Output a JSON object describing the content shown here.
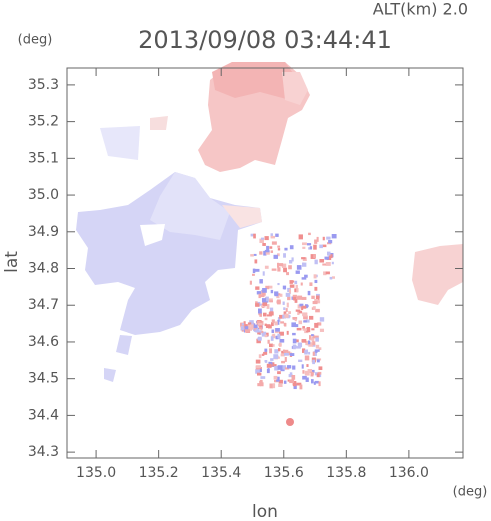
{
  "chart_data": {
    "type": "map",
    "title": "2013/09/08 03:44:41",
    "altitude_label": "ALT(km) 2.0",
    "x_label": "lon",
    "x_unit": "(deg)",
    "y_label": "lat",
    "y_unit": "(deg)",
    "xlim": [
      134.907,
      136.173
    ],
    "ylim": [
      34.284,
      35.346
    ],
    "xticks": [
      {
        "value": 135,
        "label": "135.0"
      },
      135.2,
      135.4,
      135.6,
      135.8,
      {
        "value": 136,
        "label": "136.0"
      }
    ],
    "yticks": [
      34.3,
      34.4,
      34.5,
      34.6,
      34.7,
      34.8,
      34.9,
      {
        "value": 35,
        "label": "35.0"
      },
      35.1,
      35.2,
      35.3
    ]
  }
}
